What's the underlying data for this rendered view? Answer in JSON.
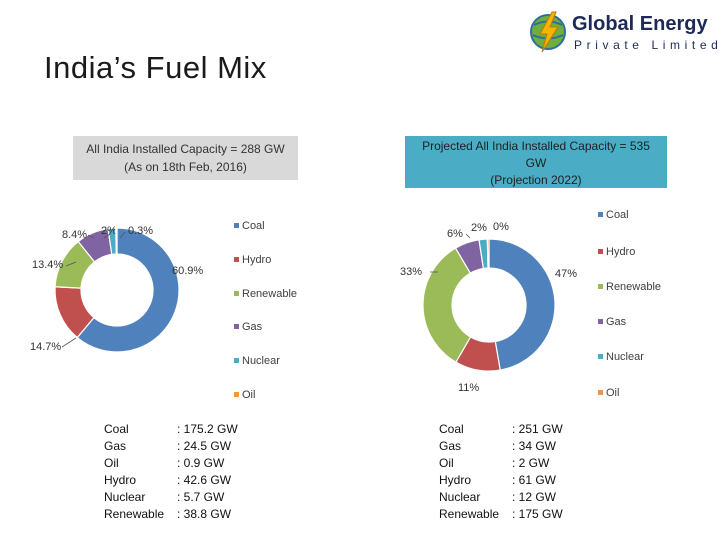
{
  "page": {
    "title": "India’s Fuel Mix"
  },
  "logo": {
    "line1": "Global Energy",
    "line2": "Private Limited",
    "icon": "lightning-globe-icon"
  },
  "colors": {
    "Coal": "#4f81bd",
    "Hydro": "#c0504d",
    "Renewable": "#9bbb59",
    "Gas": "#8064a2",
    "Nuclear": "#4bacc6",
    "Oil": "#f79646"
  },
  "chart_data": [
    {
      "type": "pie",
      "title_lines": [
        "All India Installed Capacity = 288 GW",
        "(As on 18th Feb, 2016)"
      ],
      "legend_position": "right",
      "legend": [
        "Coal",
        "Hydro",
        "Renewable",
        "Gas",
        "Nuclear",
        "Oil"
      ],
      "slices": [
        {
          "name": "Coal",
          "value": 60.9,
          "label": "60.9%"
        },
        {
          "name": "Hydro",
          "value": 14.7,
          "label": "14.7%"
        },
        {
          "name": "Renewable",
          "value": 13.4,
          "label": "13.4%"
        },
        {
          "name": "Gas",
          "value": 8.4,
          "label": "8.4%"
        },
        {
          "name": "Nuclear",
          "value": 2,
          "label": "2%"
        },
        {
          "name": "Oil",
          "value": 0.3,
          "label": "0.3%"
        }
      ],
      "capacity_table": [
        {
          "name": "Coal",
          "value": ": 175.2 GW"
        },
        {
          "name": "Gas",
          "value": ": 24.5 GW"
        },
        {
          "name": "Oil",
          "value": ": 0.9 GW"
        },
        {
          "name": "Hydro",
          "value": ": 42.6 GW"
        },
        {
          "name": "Nuclear",
          "value": ": 5.7 GW"
        },
        {
          "name": "Renewable",
          "value": ": 38.8 GW"
        }
      ]
    },
    {
      "type": "pie",
      "title_lines": [
        "Projected All India Installed Capacity = 535",
        "GW",
        "(Projection 2022)"
      ],
      "legend_position": "right",
      "legend": [
        "Coal",
        "Hydro",
        "Renewable",
        "Gas",
        "Nuclear",
        "Oil"
      ],
      "slices": [
        {
          "name": "Coal",
          "value": 47,
          "label": "47%"
        },
        {
          "name": "Hydro",
          "value": 11,
          "label": "11%"
        },
        {
          "name": "Renewable",
          "value": 33,
          "label": "33%"
        },
        {
          "name": "Gas",
          "value": 6,
          "label": "6%"
        },
        {
          "name": "Nuclear",
          "value": 2,
          "label": "2%"
        },
        {
          "name": "Oil",
          "value": 0.4,
          "label": "0%"
        }
      ],
      "capacity_table": [
        {
          "name": "Coal",
          "value": ": 251 GW"
        },
        {
          "name": "Gas",
          "value": ": 34 GW"
        },
        {
          "name": "Oil",
          "value": ": 2 GW"
        },
        {
          "name": "Hydro",
          "value": ": 61 GW"
        },
        {
          "name": "Nuclear",
          "value": ": 12 GW"
        },
        {
          "name": "Renewable",
          "value": ": 175 GW"
        }
      ]
    }
  ]
}
